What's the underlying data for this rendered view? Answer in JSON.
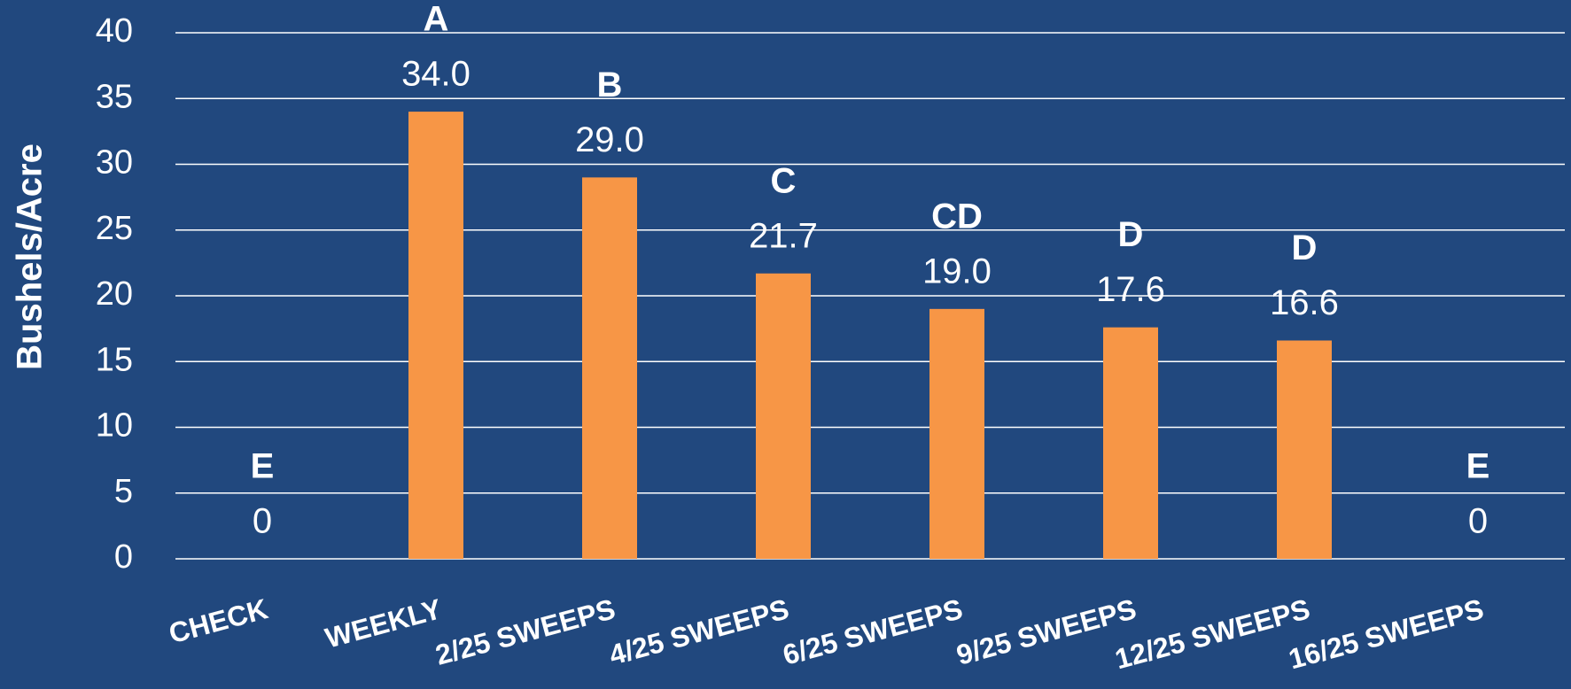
{
  "chart_data": {
    "type": "bar",
    "y_label": "Bushels/Acre",
    "categories": [
      "CHECK",
      "WEEKLY",
      "2/25 SWEEPS",
      "4/25 SWEEPS",
      "6/25 SWEEPS",
      "9/25 SWEEPS",
      "12/25 SWEEPS",
      "16/25 SWEEPS"
    ],
    "values": [
      0,
      34.0,
      29.0,
      21.7,
      19.0,
      17.6,
      16.6,
      0
    ],
    "value_labels": [
      "0",
      "34.0",
      "29.0",
      "21.7",
      "19.0",
      "17.6",
      "16.6",
      "0"
    ],
    "annotations": [
      "E",
      "A",
      "B",
      "C",
      "CD",
      "D",
      "D",
      "E"
    ],
    "color": "#f79646",
    "ylim": [
      0,
      40
    ],
    "yticks": [
      0,
      5,
      10,
      15,
      20,
      25,
      30,
      35,
      40
    ],
    "grid": true
  }
}
